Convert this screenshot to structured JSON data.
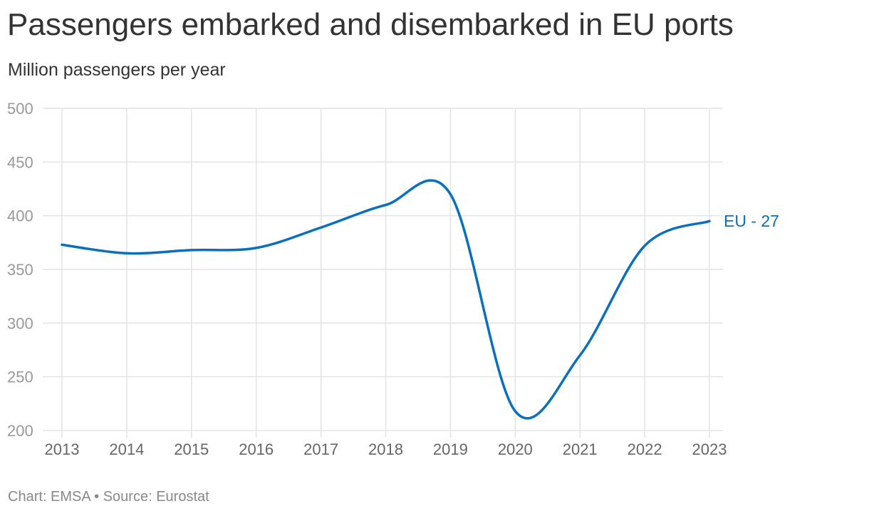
{
  "header": {
    "title": "Passengers embarked and disembarked in EU ports",
    "subtitle": "Million passengers per year"
  },
  "footer": {
    "credit": "Chart: EMSA • Source: Eurostat"
  },
  "colors": {
    "series": "#0a6fbd",
    "grid": "#e3e3e3",
    "axis_text": "#999999"
  },
  "chart_data": {
    "type": "line",
    "title": "Passengers embarked and disembarked in EU ports",
    "subtitle": "Million passengers per year",
    "xlabel": "",
    "ylabel": "Million passengers per year",
    "x": [
      "2013",
      "2014",
      "2015",
      "2016",
      "2017",
      "2018",
      "2019",
      "2020",
      "2021",
      "2022",
      "2023"
    ],
    "y_ticks": [
      200,
      250,
      300,
      350,
      400,
      450,
      500
    ],
    "ylim": [
      200,
      500
    ],
    "grid": true,
    "legend": "inline-right",
    "series": [
      {
        "name": "EU - 27",
        "values": [
          373,
          365,
          368,
          370,
          389,
          410,
          420,
          218,
          270,
          372,
          395
        ]
      }
    ]
  }
}
